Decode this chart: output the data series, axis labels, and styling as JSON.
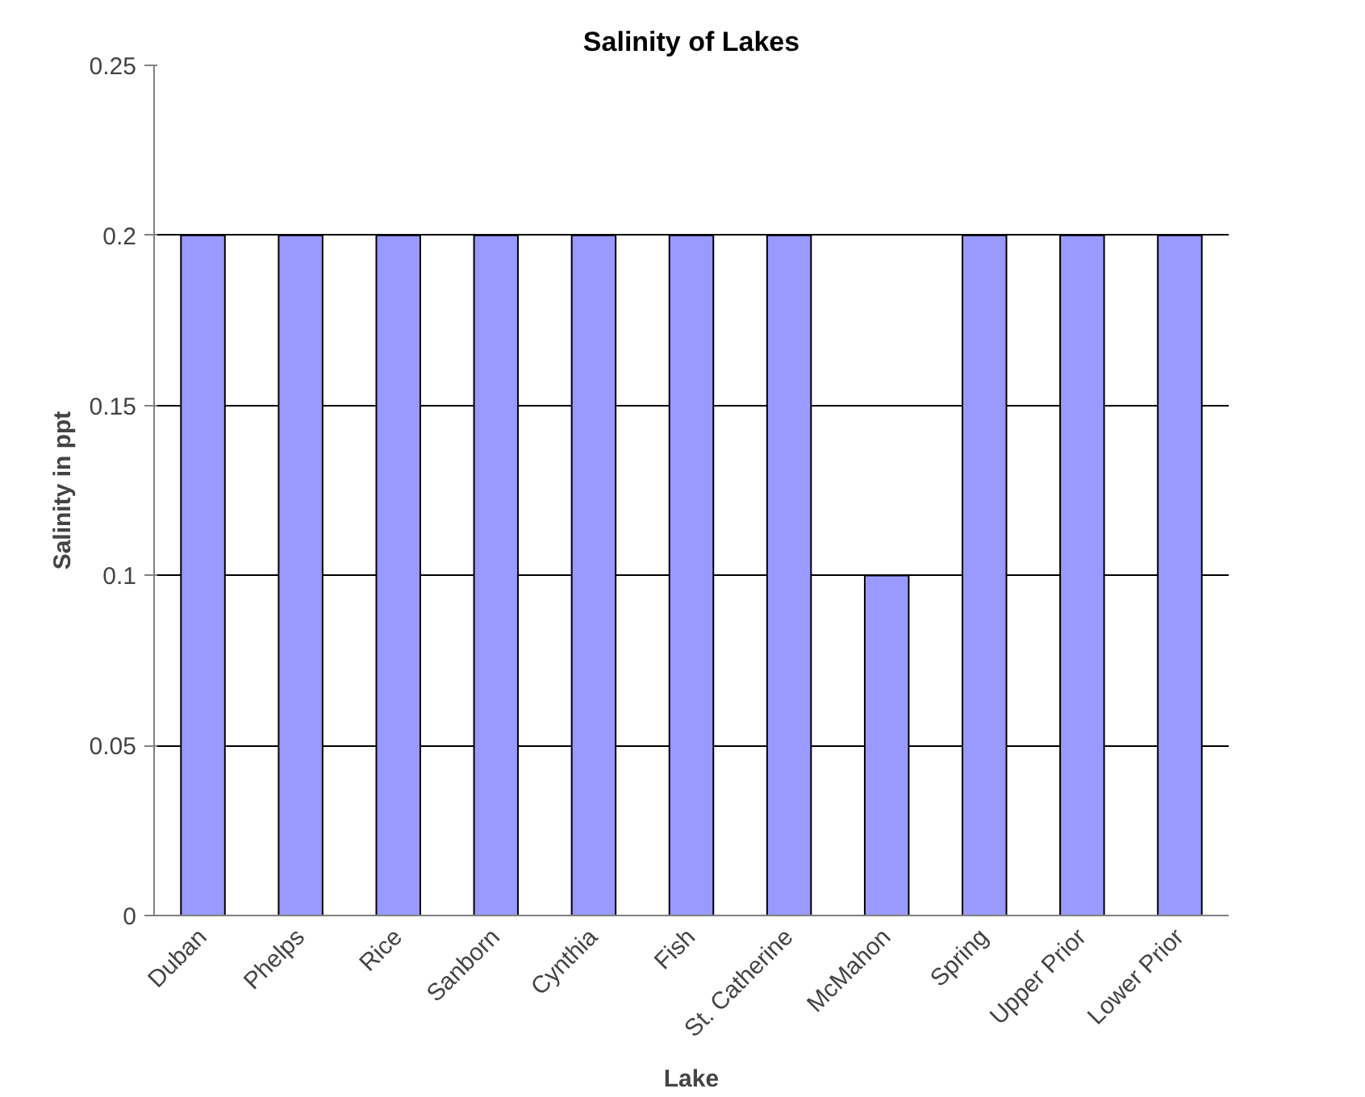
{
  "chart_data": {
    "type": "bar",
    "title": "Salinity of Lakes",
    "xlabel": "Lake",
    "ylabel": "Salinity in ppt",
    "categories": [
      "Duban",
      "Phelps",
      "Rice",
      "Sanborn",
      "Cynthia",
      "Fish",
      "St. Catherine",
      "McMahon",
      "Spring",
      "Upper Prior",
      "Lower Prior"
    ],
    "values": [
      0.2,
      0.2,
      0.2,
      0.2,
      0.2,
      0.2,
      0.2,
      0.1,
      0.2,
      0.2,
      0.2
    ],
    "color": "#9999ff",
    "ylim": [
      0,
      0.25
    ],
    "yticks": [
      0,
      0.05,
      0.1,
      0.15,
      0.2,
      0.25
    ],
    "grid": "y"
  }
}
